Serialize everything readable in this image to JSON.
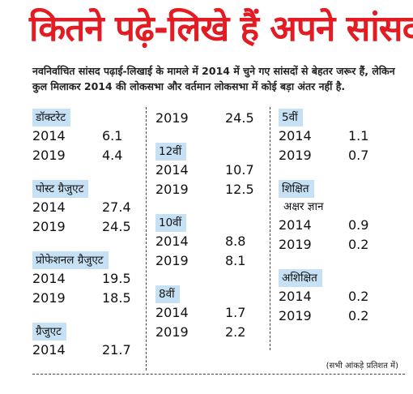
{
  "title": "कितने पढ़े-लिखे हैं अपने सांसद",
  "intro": "नवनिर्वाचित सांसद पढ़ाई-लिखाई के मामले में 2014 में चुने गए सांसदों से बेहतर जरूर हैं, लेकिन कुल मिलाकर 2014 की लोकसभा और वर्तमान लोकसभा में कोई बड़ा अंतर नहीं है.",
  "columns": [
    {
      "groups": [
        {
          "label": "डॉक्टरेट",
          "rows": [
            {
              "year": "2014",
              "value": "6.1"
            },
            {
              "year": "2019",
              "value": "4.4"
            }
          ]
        },
        {
          "label": "पोस्ट ग्रैजुएट",
          "rows": [
            {
              "year": "2014",
              "value": "27.4"
            },
            {
              "year": "2019",
              "value": "24.5"
            }
          ]
        },
        {
          "label": "प्रोफेशनल ग्रैजुएट",
          "rows": [
            {
              "year": "2014",
              "value": "19.5"
            },
            {
              "year": "2019",
              "value": "18.5"
            }
          ]
        },
        {
          "label": "ग्रैजुएट",
          "rows": [
            {
              "year": "2014",
              "value": "21.7"
            }
          ]
        }
      ]
    },
    {
      "groups": [
        {
          "rows": [
            {
              "year": "2019",
              "value": "24.5"
            }
          ]
        },
        {
          "label": "12वीं",
          "rows": [
            {
              "year": "2014",
              "value": "10.7"
            },
            {
              "year": "2019",
              "value": "12.5"
            }
          ]
        },
        {
          "label": "10वीं",
          "rows": [
            {
              "year": "2014",
              "value": "8.8"
            },
            {
              "year": "2019",
              "value": "8.1"
            }
          ]
        },
        {
          "label": "8वीं",
          "rows": [
            {
              "year": "2014",
              "value": "1.7"
            },
            {
              "year": "2019",
              "value": "2.2"
            }
          ]
        }
      ]
    },
    {
      "groups": [
        {
          "label": "5वीं",
          "rows": [
            {
              "year": "2014",
              "value": "1.1"
            },
            {
              "year": "2019",
              "value": "0.7"
            }
          ]
        },
        {
          "label": "शिक्षित",
          "sublabel": "अक्षर ज्ञान",
          "rows": [
            {
              "year": "2014",
              "value": "0.9"
            },
            {
              "year": "2019",
              "value": "0.2"
            }
          ]
        },
        {
          "label": "अशिक्षित",
          "rows": [
            {
              "year": "2014",
              "value": "0.2"
            },
            {
              "year": "2019",
              "value": "0.2"
            }
          ]
        }
      ]
    }
  ],
  "note": "(सभी आंकड़े प्रतिशत में)"
}
